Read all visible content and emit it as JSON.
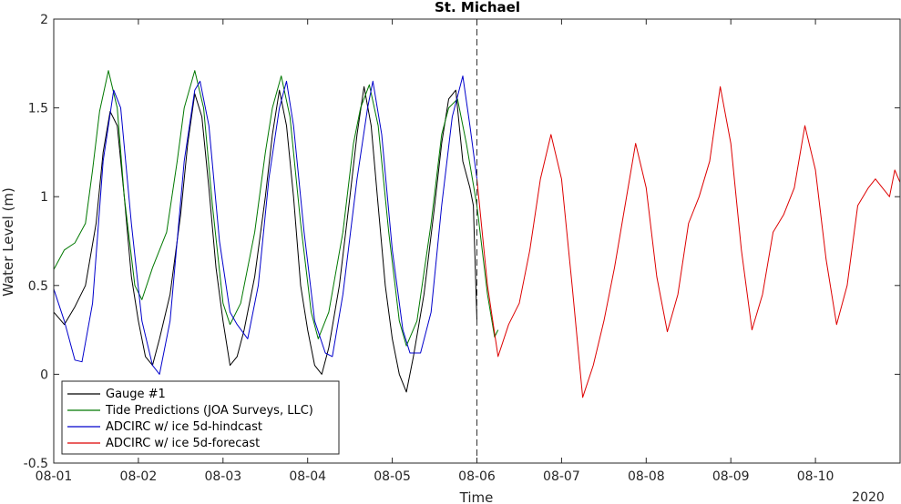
{
  "chart_data": {
    "type": "line",
    "title": "St. Michael",
    "xlabel": "Time",
    "ylabel": "Water Level (m)",
    "year_label": "2020",
    "xlim": [
      "2020-08-01 00:00",
      "2020-08-11 00:00"
    ],
    "ylim": [
      -0.5,
      2
    ],
    "x_ticks": [
      "08-01",
      "08-02",
      "08-03",
      "08-04",
      "08-05",
      "08-06",
      "08-07",
      "08-08",
      "08-09",
      "08-10"
    ],
    "y_ticks": [
      "-0.5",
      "0",
      "0.5",
      "1",
      "1.5",
      "2"
    ],
    "y_tick_values": [
      -0.5,
      0,
      0.5,
      1,
      1.5,
      2
    ],
    "forecast_start": "2020-08-06 00:00",
    "grid": false,
    "legend_position": "bottom-left",
    "series": [
      {
        "name": "Gauge #1",
        "color": "#000000",
        "points": [
          [
            "2020-08-01 00:00",
            0.35
          ],
          [
            "2020-08-01 03:00",
            0.28
          ],
          [
            "2020-08-01 06:00",
            0.38
          ],
          [
            "2020-08-01 09:00",
            0.5
          ],
          [
            "2020-08-01 12:00",
            0.85
          ],
          [
            "2020-08-01 14:00",
            1.25
          ],
          [
            "2020-08-01 16:00",
            1.48
          ],
          [
            "2020-08-01 18:00",
            1.4
          ],
          [
            "2020-08-01 20:00",
            1.0
          ],
          [
            "2020-08-01 22:00",
            0.55
          ],
          [
            "2020-08-02 00:00",
            0.3
          ],
          [
            "2020-08-02 02:00",
            0.1
          ],
          [
            "2020-08-02 04:00",
            0.05
          ],
          [
            "2020-08-02 06:00",
            0.2
          ],
          [
            "2020-08-02 09:00",
            0.45
          ],
          [
            "2020-08-02 12:00",
            0.9
          ],
          [
            "2020-08-02 14:00",
            1.3
          ],
          [
            "2020-08-02 16:00",
            1.58
          ],
          [
            "2020-08-02 18:00",
            1.45
          ],
          [
            "2020-08-02 20:00",
            1.05
          ],
          [
            "2020-08-02 22:00",
            0.6
          ],
          [
            "2020-08-03 00:00",
            0.3
          ],
          [
            "2020-08-03 02:00",
            0.05
          ],
          [
            "2020-08-03 04:00",
            0.1
          ],
          [
            "2020-08-03 06:00",
            0.25
          ],
          [
            "2020-08-03 09:00",
            0.55
          ],
          [
            "2020-08-03 12:00",
            1.0
          ],
          [
            "2020-08-03 14:00",
            1.35
          ],
          [
            "2020-08-03 16:00",
            1.6
          ],
          [
            "2020-08-03 18:00",
            1.4
          ],
          [
            "2020-08-03 20:00",
            1.0
          ],
          [
            "2020-08-03 22:00",
            0.5
          ],
          [
            "2020-08-04 00:00",
            0.25
          ],
          [
            "2020-08-04 02:00",
            0.05
          ],
          [
            "2020-08-04 04:00",
            0.0
          ],
          [
            "2020-08-04 06:00",
            0.15
          ],
          [
            "2020-08-04 09:00",
            0.5
          ],
          [
            "2020-08-04 12:00",
            1.0
          ],
          [
            "2020-08-04 14:00",
            1.35
          ],
          [
            "2020-08-04 16:00",
            1.62
          ],
          [
            "2020-08-04 18:00",
            1.4
          ],
          [
            "2020-08-04 20:00",
            0.95
          ],
          [
            "2020-08-04 22:00",
            0.5
          ],
          [
            "2020-08-05 00:00",
            0.2
          ],
          [
            "2020-08-05 02:00",
            0.0
          ],
          [
            "2020-08-05 04:00",
            -0.1
          ],
          [
            "2020-08-05 06:00",
            0.1
          ],
          [
            "2020-08-05 09:00",
            0.45
          ],
          [
            "2020-08-05 12:00",
            0.95
          ],
          [
            "2020-08-05 14:00",
            1.3
          ],
          [
            "2020-08-05 16:00",
            1.55
          ],
          [
            "2020-08-05 18:00",
            1.6
          ],
          [
            "2020-08-05 19:00",
            1.4
          ],
          [
            "2020-08-05 20:00",
            1.2
          ],
          [
            "2020-08-05 22:00",
            1.05
          ],
          [
            "2020-08-05 23:00",
            0.95
          ],
          [
            "2020-08-06 00:00",
            0.3
          ]
        ]
      },
      {
        "name": "Tide Predictions (JOA Surveys, LLC)",
        "color": "#007800",
        "points": [
          [
            "2020-08-01 00:00",
            0.59
          ],
          [
            "2020-08-01 03:00",
            0.7
          ],
          [
            "2020-08-01 06:00",
            0.74
          ],
          [
            "2020-08-01 09:00",
            0.85
          ],
          [
            "2020-08-01 11:00",
            1.15
          ],
          [
            "2020-08-01 13:00",
            1.48
          ],
          [
            "2020-08-01 15:30",
            1.71
          ],
          [
            "2020-08-01 18:00",
            1.5
          ],
          [
            "2020-08-01 20:00",
            1.0
          ],
          [
            "2020-08-01 23:00",
            0.5
          ],
          [
            "2020-08-02 01:00",
            0.42
          ],
          [
            "2020-08-02 04:00",
            0.6
          ],
          [
            "2020-08-02 08:00",
            0.8
          ],
          [
            "2020-08-02 11:00",
            1.2
          ],
          [
            "2020-08-02 13:00",
            1.5
          ],
          [
            "2020-08-02 16:00",
            1.71
          ],
          [
            "2020-08-02 18:30",
            1.5
          ],
          [
            "2020-08-02 21:00",
            0.95
          ],
          [
            "2020-08-03 00:00",
            0.4
          ],
          [
            "2020-08-03 02:00",
            0.28
          ],
          [
            "2020-08-03 05:00",
            0.4
          ],
          [
            "2020-08-03 09:00",
            0.8
          ],
          [
            "2020-08-03 12:00",
            1.25
          ],
          [
            "2020-08-03 14:00",
            1.5
          ],
          [
            "2020-08-03 16:30",
            1.68
          ],
          [
            "2020-08-03 19:00",
            1.45
          ],
          [
            "2020-08-03 22:00",
            0.85
          ],
          [
            "2020-08-04 01:00",
            0.35
          ],
          [
            "2020-08-04 03:00",
            0.2
          ],
          [
            "2020-08-04 06:00",
            0.35
          ],
          [
            "2020-08-04 10:00",
            0.8
          ],
          [
            "2020-08-04 13:00",
            1.3
          ],
          [
            "2020-08-04 15:00",
            1.5
          ],
          [
            "2020-08-04 17:30",
            1.63
          ],
          [
            "2020-08-04 20:00",
            1.4
          ],
          [
            "2020-08-04 23:00",
            0.8
          ],
          [
            "2020-08-05 02:00",
            0.3
          ],
          [
            "2020-08-05 04:00",
            0.16
          ],
          [
            "2020-08-05 07:00",
            0.3
          ],
          [
            "2020-08-05 11:00",
            0.85
          ],
          [
            "2020-08-05 14:00",
            1.35
          ],
          [
            "2020-08-05 16:00",
            1.5
          ],
          [
            "2020-08-05 18:30",
            1.55
          ],
          [
            "2020-08-05 21:00",
            1.3
          ],
          [
            "2020-08-06 00:00",
            0.95
          ],
          [
            "2020-08-06 03:00",
            0.45
          ],
          [
            "2020-08-06 05:00",
            0.21
          ],
          [
            "2020-08-06 06:00",
            0.25
          ]
        ]
      },
      {
        "name": "ADCIRC w/ ice 5d-hindcast",
        "color": "#0000cc",
        "points": [
          [
            "2020-08-01 00:00",
            0.48
          ],
          [
            "2020-08-01 03:00",
            0.3
          ],
          [
            "2020-08-01 06:00",
            0.08
          ],
          [
            "2020-08-01 08:00",
            0.07
          ],
          [
            "2020-08-01 11:00",
            0.4
          ],
          [
            "2020-08-01 14:00",
            1.2
          ],
          [
            "2020-08-01 17:00",
            1.6
          ],
          [
            "2020-08-01 19:00",
            1.5
          ],
          [
            "2020-08-01 22:00",
            0.85
          ],
          [
            "2020-08-02 01:00",
            0.3
          ],
          [
            "2020-08-02 04:00",
            0.05
          ],
          [
            "2020-08-02 06:00",
            0.0
          ],
          [
            "2020-08-02 09:00",
            0.3
          ],
          [
            "2020-08-02 13:00",
            1.2
          ],
          [
            "2020-08-02 16:00",
            1.6
          ],
          [
            "2020-08-02 17:30",
            1.65
          ],
          [
            "2020-08-02 20:00",
            1.4
          ],
          [
            "2020-08-02 23:00",
            0.75
          ],
          [
            "2020-08-03 02:00",
            0.35
          ],
          [
            "2020-08-03 04:00",
            0.28
          ],
          [
            "2020-08-03 07:00",
            0.2
          ],
          [
            "2020-08-03 10:00",
            0.5
          ],
          [
            "2020-08-03 13:00",
            1.1
          ],
          [
            "2020-08-03 16:00",
            1.5
          ],
          [
            "2020-08-03 18:00",
            1.65
          ],
          [
            "2020-08-03 20:00",
            1.4
          ],
          [
            "2020-08-03 23:00",
            0.8
          ],
          [
            "2020-08-04 02:00",
            0.3
          ],
          [
            "2020-08-04 05:00",
            0.12
          ],
          [
            "2020-08-04 07:00",
            0.1
          ],
          [
            "2020-08-04 10:00",
            0.45
          ],
          [
            "2020-08-04 14:00",
            1.1
          ],
          [
            "2020-08-04 17:00",
            1.5
          ],
          [
            "2020-08-04 18:30",
            1.65
          ],
          [
            "2020-08-04 21:00",
            1.35
          ],
          [
            "2020-08-05 00:00",
            0.7
          ],
          [
            "2020-08-05 03:00",
            0.25
          ],
          [
            "2020-08-05 05:00",
            0.12
          ],
          [
            "2020-08-05 08:00",
            0.12
          ],
          [
            "2020-08-05 11:00",
            0.35
          ],
          [
            "2020-08-05 14:00",
            0.95
          ],
          [
            "2020-08-05 17:00",
            1.45
          ],
          [
            "2020-08-05 20:00",
            1.68
          ],
          [
            "2020-08-05 22:00",
            1.4
          ],
          [
            "2020-08-06 00:00",
            1.1
          ]
        ]
      },
      {
        "name": "ADCIRC w/ ice 5d-forecast",
        "color": "#dd0000",
        "points": [
          [
            "2020-08-06 00:00",
            1.1
          ],
          [
            "2020-08-06 03:00",
            0.5
          ],
          [
            "2020-08-06 06:00",
            0.1
          ],
          [
            "2020-08-06 09:00",
            0.28
          ],
          [
            "2020-08-06 12:00",
            0.4
          ],
          [
            "2020-08-06 15:00",
            0.7
          ],
          [
            "2020-08-06 18:00",
            1.1
          ],
          [
            "2020-08-06 21:00",
            1.35
          ],
          [
            "2020-08-07 00:00",
            1.1
          ],
          [
            "2020-08-07 03:00",
            0.5
          ],
          [
            "2020-08-07 06:00",
            -0.13
          ],
          [
            "2020-08-07 09:00",
            0.05
          ],
          [
            "2020-08-07 12:00",
            0.3
          ],
          [
            "2020-08-07 15:00",
            0.6
          ],
          [
            "2020-08-07 18:00",
            0.95
          ],
          [
            "2020-08-07 21:00",
            1.3
          ],
          [
            "2020-08-08 00:00",
            1.05
          ],
          [
            "2020-08-08 03:00",
            0.55
          ],
          [
            "2020-08-08 06:00",
            0.24
          ],
          [
            "2020-08-08 09:00",
            0.45
          ],
          [
            "2020-08-08 12:00",
            0.85
          ],
          [
            "2020-08-08 15:00",
            1.0
          ],
          [
            "2020-08-08 18:00",
            1.2
          ],
          [
            "2020-08-08 21:00",
            1.62
          ],
          [
            "2020-08-09 00:00",
            1.3
          ],
          [
            "2020-08-09 03:00",
            0.7
          ],
          [
            "2020-08-09 06:00",
            0.25
          ],
          [
            "2020-08-09 09:00",
            0.45
          ],
          [
            "2020-08-09 12:00",
            0.8
          ],
          [
            "2020-08-09 15:00",
            0.9
          ],
          [
            "2020-08-09 18:00",
            1.05
          ],
          [
            "2020-08-09 21:00",
            1.4
          ],
          [
            "2020-08-10 00:00",
            1.15
          ],
          [
            "2020-08-10 03:00",
            0.65
          ],
          [
            "2020-08-10 06:00",
            0.28
          ],
          [
            "2020-08-10 09:00",
            0.5
          ],
          [
            "2020-08-10 12:00",
            0.95
          ],
          [
            "2020-08-10 15:00",
            1.05
          ],
          [
            "2020-08-10 17:00",
            1.1
          ],
          [
            "2020-08-10 19:00",
            1.05
          ],
          [
            "2020-08-10 21:00",
            1.0
          ],
          [
            "2020-08-10 22:30",
            1.15
          ],
          [
            "2020-08-11 00:00",
            1.08
          ]
        ]
      }
    ]
  }
}
